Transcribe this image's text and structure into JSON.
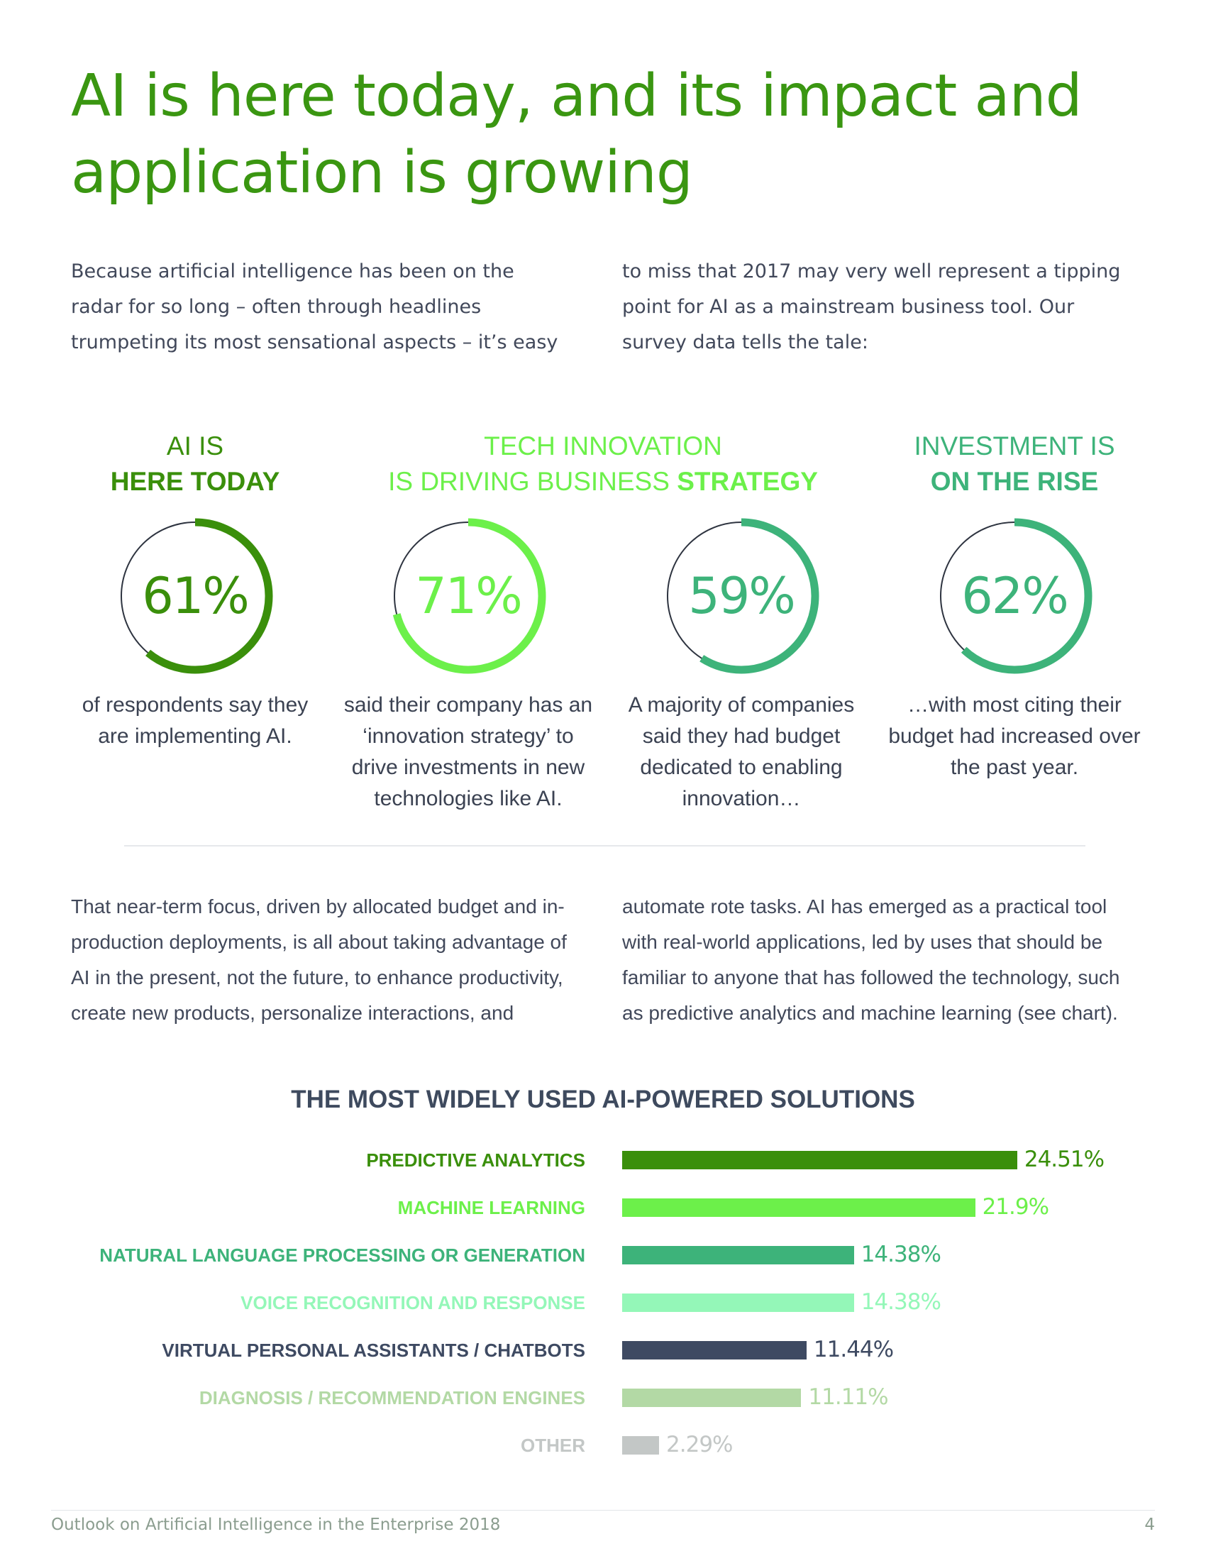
{
  "title": "AI is here today, and its impact and application is growing",
  "intro": {
    "left": "Because artificial intelligence has been on the radar for so long – often through headlines trumpeting its most sensational aspects – it’s easy",
    "right": "to miss that 2017 may very well represent a tipping point for AI as a mainstream business tool. Our survey data tells the tale:"
  },
  "stat_headings": [
    {
      "light": "AI IS",
      "bold": "HERE TODAY"
    },
    {
      "light": "TECH INNOVATION",
      "light2": "IS DRIVING BUSINESS ",
      "bold": "STRATEGY"
    },
    {
      "light": "INVESTMENT IS",
      "bold": "ON THE RISE"
    }
  ],
  "stats": [
    {
      "value": "61%",
      "percent": 61,
      "caption": "of respondents say they are implementing AI.",
      "color": "#3a8f0b"
    },
    {
      "value": "71%",
      "percent": 71,
      "caption": "said their company has an ‘innovation strategy’ to drive investments in new technologies like AI.",
      "color": "#6cf04a"
    },
    {
      "value": "59%",
      "percent": 59,
      "caption": "A majority of companies said they had budget dedicated to enabling innovation…",
      "color": "#3db37a"
    },
    {
      "value": "62%",
      "percent": 62,
      "caption": "…with most citing their budget had increased over the past year.",
      "color": "#3db37a"
    }
  ],
  "body": {
    "left": "That near-term focus, driven by allocated budget and in-production deployments, is all about taking advantage of AI in the present, not the future, to enhance productivity, create new products, personalize interactions, and",
    "right": "automate rote tasks. AI has emerged as a practical tool with real-world applications, led by uses that should be familiar to anyone that has followed the technology, such as predictive analytics and machine learning (see chart)."
  },
  "chart_data": {
    "type": "bar",
    "orientation": "horizontal",
    "title": "THE MOST WIDELY USED AI-POWERED SOLUTIONS",
    "categories": [
      "PREDICTIVE ANALYTICS",
      "MACHINE LEARNING",
      "NATURAL LANGUAGE PROCESSING OR GENERATION",
      "VOICE RECOGNITION AND RESPONSE",
      "VIRTUAL PERSONAL ASSISTANTS / CHATBOTS",
      "DIAGNOSIS / RECOMMENDATION ENGINES",
      "OTHER"
    ],
    "values": [
      24.51,
      21.9,
      14.38,
      14.38,
      11.44,
      11.11,
      2.29
    ],
    "value_labels": [
      "24.51%",
      "21.9%",
      "14.38%",
      "14.38%",
      "11.44%",
      "11.11%",
      "2.29%"
    ],
    "colors": [
      "#3a8f0b",
      "#6cf04a",
      "#3db37a",
      "#94f7b8",
      "#3e4a62",
      "#b3d9a5",
      "#c3c7c6"
    ],
    "xlim": [
      0,
      25
    ]
  },
  "footer": {
    "left": "Outlook on Artificial Intelligence in the Enterprise 2018",
    "page": "4"
  }
}
